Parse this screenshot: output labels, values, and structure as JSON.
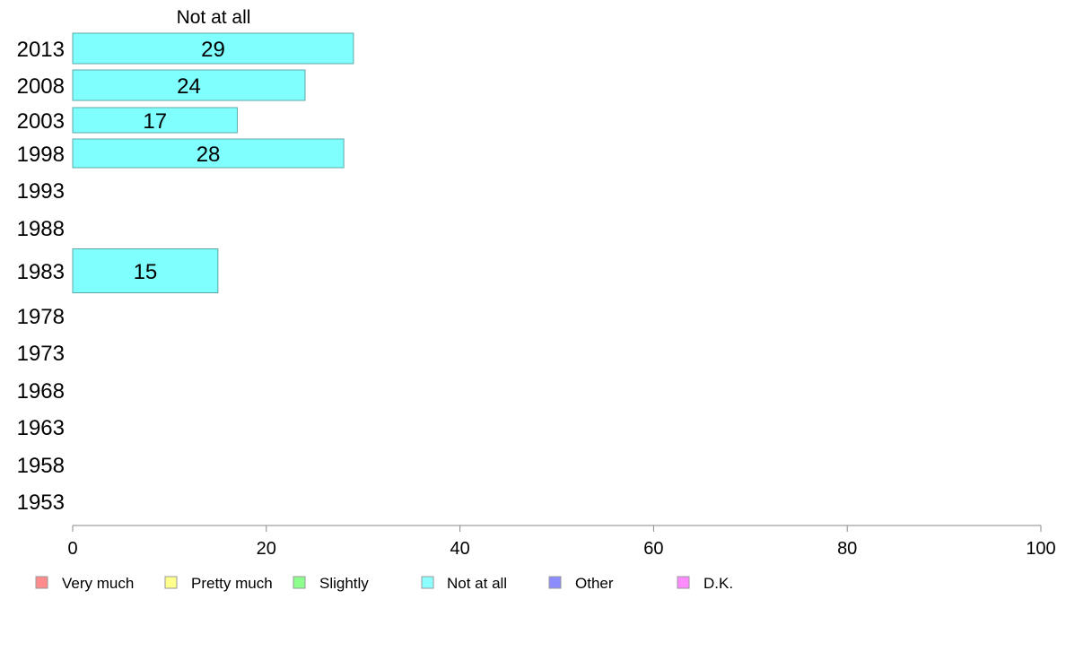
{
  "chart_data": {
    "type": "bar",
    "orientation": "horizontal",
    "title": "Not at all",
    "categories": [
      "2013",
      "2008",
      "2003",
      "1998",
      "1993",
      "1988",
      "1983",
      "1978",
      "1973",
      "1968",
      "1963",
      "1958",
      "1953"
    ],
    "series": [
      {
        "name": "Not at all",
        "values": [
          29,
          24,
          17,
          28,
          null,
          null,
          15,
          null,
          null,
          null,
          null,
          null,
          null
        ]
      }
    ],
    "xlim": [
      0,
      100
    ],
    "xticks": [
      0,
      20,
      40,
      60,
      80,
      100
    ],
    "grid": false,
    "legend": {
      "placement": "bottom",
      "entries": [
        {
          "label": "Very much",
          "color": "#ff8c8c"
        },
        {
          "label": "Pretty much",
          "color": "#ffff8c"
        },
        {
          "label": "Slightly",
          "color": "#8cff8c"
        },
        {
          "label": "Not at all",
          "color": "#8cffff"
        },
        {
          "label": "Other",
          "color": "#8c8cff"
        },
        {
          "label": "D.K.",
          "color": "#ff8cff"
        }
      ]
    },
    "bar_color": "#80ffff",
    "bar_stroke": "#5fa8a8"
  }
}
